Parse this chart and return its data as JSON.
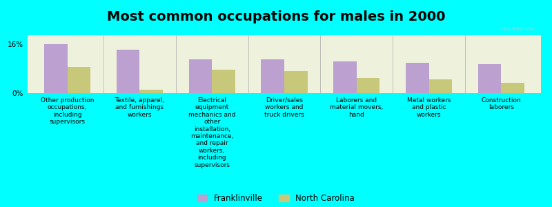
{
  "title": "Most common occupations for males in 2000",
  "background_color": "#00FFFF",
  "plot_bg_color": "#EEF2DC",
  "bar_width": 0.32,
  "categories": [
    "Other production\noccupations,\nincluding\nsupervisors",
    "Textile, apparel,\nand furnishings\nworkers",
    "Electrical\nequipment\nmechanics and\nother\ninstallation,\nmaintenance,\nand repair\nworkers,\nincluding\nsupervisors",
    "Driver/sales\nworkers and\ntruck drivers",
    "Laborers and\nmaterial movers,\nhand",
    "Metal workers\nand plastic\nworkers",
    "Construction\nlaborers"
  ],
  "franklinville_values": [
    16.1,
    14.2,
    11.0,
    11.0,
    10.5,
    10.0,
    9.5
  ],
  "north_carolina_values": [
    8.5,
    1.2,
    7.8,
    7.2,
    5.0,
    4.5,
    3.5
  ],
  "franklinville_color": "#BBA0D0",
  "north_carolina_color": "#C8C87A",
  "ylim": [
    0,
    19
  ],
  "ytick_vals": [
    0,
    16
  ],
  "ytick_labels": [
    "0%",
    "16%"
  ],
  "legend_franklinville": "Franklinville",
  "legend_north_carolina": "North Carolina",
  "title_fontsize": 14,
  "label_fontsize": 6.5,
  "watermark": "city-data.com"
}
